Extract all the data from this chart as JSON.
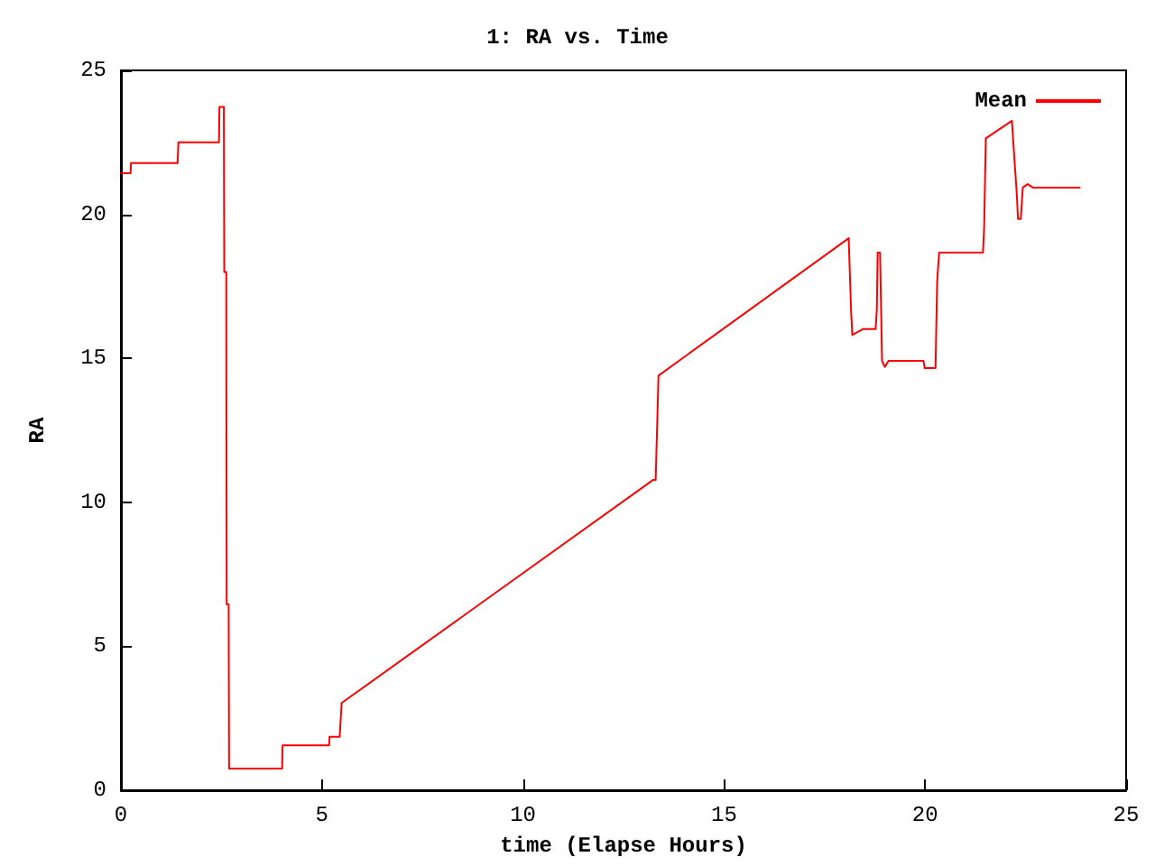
{
  "chart_data": {
    "type": "line",
    "title": "1: RA vs. Time",
    "xlabel": "time (Elapse Hours)",
    "ylabel": "RA",
    "xlim": [
      0,
      25
    ],
    "xticks": [
      0,
      5,
      10,
      15,
      20,
      25
    ],
    "ylim": [
      0,
      25
    ],
    "yticks": [
      0,
      5,
      10,
      15,
      20,
      25
    ],
    "grid": false,
    "legend": "top right",
    "marker": "none",
    "line_style": "solid",
    "series": [
      {
        "name": "Mean",
        "color": "#ff0000",
        "x": [
          0,
          0.24,
          0.25,
          1.18,
          1.41,
          1.43,
          2.35,
          2.44,
          2.45,
          2.56,
          2.57,
          2.62,
          2.63,
          2.68,
          2.69,
          3.92,
          4.01,
          4.02,
          5.09,
          5.18,
          5.19,
          5.44,
          5.49,
          13.24,
          13.3,
          13.37,
          18.1,
          18.16,
          18.19,
          18.46,
          18.77,
          18.8,
          18.82,
          18.88,
          18.93,
          19.0,
          19.09,
          19.96,
          19.99,
          20.26,
          20.3,
          20.35,
          21.44,
          21.47,
          21.51,
          22.16,
          22.2,
          22.28,
          22.31,
          22.38,
          22.43,
          22.55,
          22.68,
          23.86
        ],
        "values": [
          21.43,
          21.43,
          21.78,
          21.78,
          21.78,
          22.5,
          22.5,
          22.5,
          23.73,
          23.73,
          18.0,
          18.0,
          6.45,
          6.45,
          0.75,
          0.75,
          0.75,
          1.56,
          1.56,
          1.56,
          1.86,
          1.86,
          3.03,
          10.78,
          10.78,
          14.4,
          19.17,
          16.62,
          15.81,
          16.02,
          16.02,
          16.69,
          18.67,
          18.67,
          14.91,
          14.7,
          14.91,
          14.91,
          14.66,
          14.66,
          17.67,
          18.67,
          18.67,
          19.61,
          22.64,
          23.25,
          22.37,
          20.72,
          19.84,
          19.84,
          20.93,
          21.05,
          20.93,
          20.93
        ]
      }
    ]
  }
}
